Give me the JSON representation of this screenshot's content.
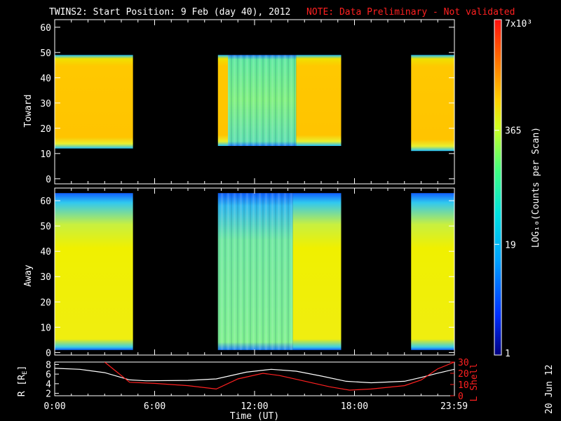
{
  "header": {
    "title": "TWINS2: Start Position:  9 Feb (day  40), 2012",
    "note": "NOTE: Data Preliminary - Not validated"
  },
  "colorbar": {
    "label": "LOG₁₀(Counts per Scan)",
    "ticks": [
      "7x10³",
      "365",
      "19",
      "1"
    ]
  },
  "footer": {
    "date": "20 Jun 12"
  },
  "chart_data": [
    {
      "type": "heatmap",
      "ylabel": "Toward",
      "ylim": [
        -2,
        63
      ],
      "yticks": [
        0,
        10,
        20,
        30,
        40,
        50,
        60
      ],
      "xlim": [
        0,
        24
      ],
      "segments": [
        {
          "start": 0.0,
          "end": 4.7,
          "ymin": 12,
          "ymax": 49,
          "level": "high"
        },
        {
          "start": 9.8,
          "end": 10.4,
          "ymin": 13,
          "ymax": 49,
          "level": "high"
        },
        {
          "start": 10.4,
          "end": 14.5,
          "ymin": 13,
          "ymax": 49,
          "level": "medium"
        },
        {
          "start": 14.5,
          "end": 17.2,
          "ymin": 13,
          "ymax": 49,
          "level": "high"
        },
        {
          "start": 21.4,
          "end": 24.0,
          "ymin": 11,
          "ymax": 49,
          "level": "high"
        }
      ]
    },
    {
      "type": "heatmap",
      "ylabel": "Away",
      "ylim": [
        -1,
        65
      ],
      "yticks": [
        0,
        10,
        20,
        30,
        40,
        50,
        60
      ],
      "xlim": [
        0,
        24
      ],
      "segments": [
        {
          "start": 0.0,
          "end": 4.7,
          "ymin": 1,
          "ymax": 63,
          "level": "high"
        },
        {
          "start": 9.8,
          "end": 14.3,
          "ymin": 1,
          "ymax": 63,
          "level": "medium"
        },
        {
          "start": 14.3,
          "end": 17.2,
          "ymin": 1,
          "ymax": 63,
          "level": "high"
        },
        {
          "start": 21.4,
          "end": 24.0,
          "ymin": 1,
          "ymax": 63,
          "level": "high"
        }
      ]
    },
    {
      "type": "line",
      "xlabel": "Time (UT)",
      "xticks": [
        "0:00",
        "6:00",
        "12:00",
        "18:00",
        "23:59"
      ],
      "xtick_values": [
        0,
        6,
        12,
        18,
        23.98
      ],
      "ylabel": "R [R_E]",
      "ylim": [
        1.5,
        8.5
      ],
      "yticks": [
        2,
        4,
        6,
        8
      ],
      "y2label": "L Shell",
      "y2lim": [
        0,
        30
      ],
      "y2ticks": [
        0,
        10,
        20,
        30
      ],
      "series": [
        {
          "color": "#ffffff",
          "axis": "left",
          "x": [
            0,
            1.5,
            3,
            4.5,
            5.5,
            8,
            9.7,
            11.5,
            13,
            14.5,
            16,
            17.5,
            19,
            21,
            22,
            23,
            24
          ],
          "y": [
            7.2,
            7.0,
            6.3,
            4.8,
            4.6,
            4.7,
            5.0,
            6.4,
            7.0,
            6.6,
            5.6,
            4.5,
            4.2,
            4.5,
            5.3,
            6.2,
            7.0
          ]
        },
        {
          "color": "#ff2020",
          "axis": "right",
          "x": [
            3.0,
            3.5,
            4.5,
            6,
            8,
            9.7,
            11,
            12.5,
            13.5,
            15,
            16.5,
            17.7,
            19,
            21,
            22,
            23,
            24
          ],
          "y": [
            30,
            24,
            12,
            11,
            9,
            6,
            15,
            20,
            18,
            13,
            8,
            5,
            6,
            9,
            14,
            24,
            30
          ]
        }
      ]
    }
  ]
}
